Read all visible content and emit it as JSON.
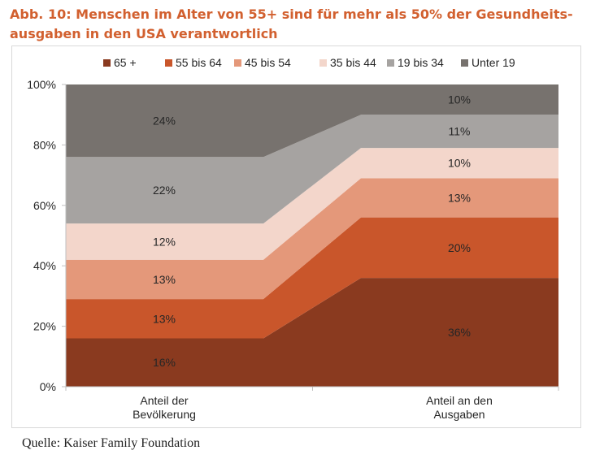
{
  "title": {
    "line1": "Abb. 10: Menschen im Alter von 55+ sind für mehr als 50% der Gesundheits-",
    "line2": "ausgaben in den USA verantwortlich"
  },
  "source": "Quelle: Kaiser Family Foundation",
  "chart_data": {
    "type": "area",
    "categories": [
      "Anteil der Bevölkerung",
      "Anteil an den Ausgaben"
    ],
    "category_lines": [
      [
        "Anteil der",
        "Bevölkerung"
      ],
      [
        "Anteil an den",
        "Ausgaben"
      ]
    ],
    "series": [
      {
        "name": "65 +",
        "values": [
          16,
          36
        ],
        "labels": [
          "16%",
          "36%"
        ],
        "color": "#8a3a1f"
      },
      {
        "name": "55 bis 64",
        "values": [
          13,
          20
        ],
        "labels": [
          "13%",
          "20%"
        ],
        "color": "#c9562b"
      },
      {
        "name": "45 bis 54",
        "values": [
          13,
          13
        ],
        "labels": [
          "13%",
          "13%"
        ],
        "color": "#e4987a"
      },
      {
        "name": "35 bis 44",
        "values": [
          12,
          10
        ],
        "labels": [
          "12%",
          "10%"
        ],
        "color": "#f3d6cb"
      },
      {
        "name": "19 bis 34",
        "values": [
          22,
          11
        ],
        "labels": [
          "22%",
          "11%"
        ],
        "color": "#a6a3a1"
      },
      {
        "name": "Unter 19",
        "values": [
          24,
          10
        ],
        "labels": [
          "24%",
          "10%"
        ],
        "color": "#77726e"
      }
    ],
    "stacked": true,
    "percent": true,
    "ylim": [
      0,
      100
    ],
    "yticks": [
      "0%",
      "20%",
      "40%",
      "60%",
      "80%",
      "100%"
    ],
    "legend_position": "top",
    "grid": false
  }
}
